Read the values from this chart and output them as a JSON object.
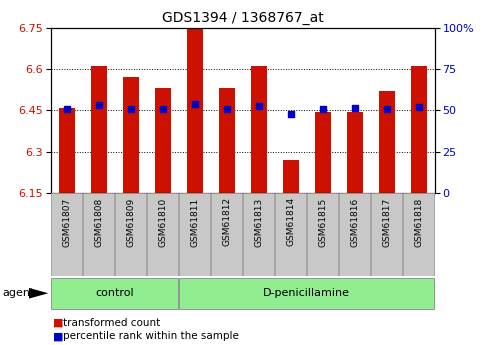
{
  "title": "GDS1394 / 1368767_at",
  "samples": [
    "GSM61807",
    "GSM61808",
    "GSM61809",
    "GSM61810",
    "GSM61811",
    "GSM61812",
    "GSM61813",
    "GSM61814",
    "GSM61815",
    "GSM61816",
    "GSM61817",
    "GSM61818"
  ],
  "bar_values": [
    6.46,
    6.61,
    6.57,
    6.53,
    6.75,
    6.53,
    6.61,
    6.27,
    6.445,
    6.445,
    6.52,
    6.61
  ],
  "percentile_values": [
    6.455,
    6.47,
    6.455,
    6.455,
    6.472,
    6.456,
    6.465,
    6.436,
    6.455,
    6.46,
    6.455,
    6.463
  ],
  "bar_bottom": 6.15,
  "ylim_min": 6.15,
  "ylim_max": 6.75,
  "yticks_left": [
    6.15,
    6.3,
    6.45,
    6.6,
    6.75
  ],
  "yticks_right_labels": [
    "0",
    "25",
    "50",
    "75",
    "100%"
  ],
  "group_boundary": 4,
  "group1_label": "control",
  "group2_label": "D-penicillamine",
  "group_color": "#90EE90",
  "bar_color": "#CC1100",
  "dot_color": "#0000CC",
  "legend_label1": "transformed count",
  "legend_label2": "percentile rank within the sample",
  "agent_label": "agent",
  "label_bg_color": "#C8C8C8",
  "label_edge_color": "#999999"
}
